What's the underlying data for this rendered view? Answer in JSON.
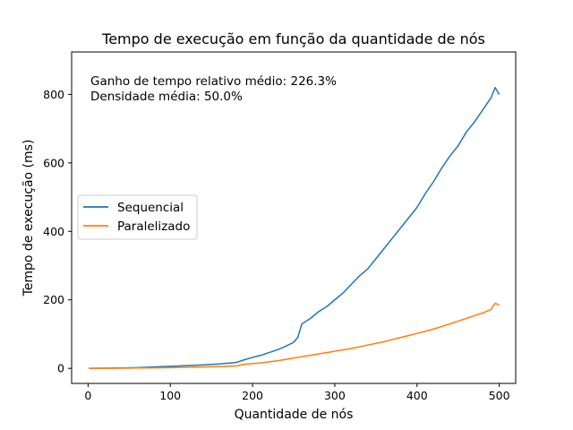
{
  "chart_data": {
    "type": "line",
    "title": "Tempo de execução em função da quantidade de nós",
    "xlabel": "Quantidade de nós",
    "ylabel": "Tempo de execução (ms)",
    "xlim": [
      -20,
      520
    ],
    "ylim": [
      -44,
      924
    ],
    "xticks": [
      0,
      100,
      200,
      300,
      400,
      500
    ],
    "yticks": [
      0,
      200,
      400,
      600,
      800
    ],
    "grid": false,
    "legend_position": "center-left",
    "annotations": [
      "Ganho de tempo relativo médio: 226.3%",
      "Densidade média: 50.0%"
    ],
    "series": [
      {
        "name": "Sequencial",
        "color": "#1f77b4",
        "x": [
          1,
          20,
          40,
          60,
          80,
          100,
          120,
          140,
          160,
          180,
          190,
          200,
          210,
          220,
          230,
          240,
          250,
          255,
          260,
          270,
          280,
          290,
          300,
          310,
          320,
          330,
          340,
          350,
          360,
          370,
          380,
          390,
          400,
          410,
          420,
          430,
          440,
          450,
          460,
          470,
          480,
          490,
          495,
          500
        ],
        "y": [
          0,
          0.5,
          1,
          2,
          4,
          6,
          8,
          10,
          13,
          17,
          25,
          32,
          38,
          46,
          54,
          64,
          76,
          90,
          130,
          145,
          165,
          180,
          200,
          220,
          245,
          270,
          290,
          320,
          350,
          380,
          410,
          440,
          470,
          510,
          545,
          585,
          620,
          650,
          690,
          720,
          755,
          790,
          820,
          800
        ]
      },
      {
        "name": "Paralelizado",
        "color": "#ff7f0e",
        "x": [
          1,
          20,
          40,
          60,
          80,
          100,
          120,
          140,
          160,
          180,
          190,
          200,
          210,
          220,
          230,
          240,
          250,
          260,
          270,
          280,
          290,
          300,
          310,
          320,
          330,
          340,
          350,
          360,
          370,
          380,
          390,
          400,
          410,
          420,
          430,
          440,
          450,
          460,
          470,
          480,
          490,
          495,
          500
        ],
        "y": [
          0,
          0.2,
          0.5,
          1,
          1.5,
          2,
          3,
          4,
          5,
          7,
          12,
          14,
          16,
          19,
          22,
          26,
          30,
          34,
          38,
          42,
          46,
          50,
          54,
          58,
          63,
          68,
          73,
          78,
          84,
          90,
          96,
          102,
          108,
          115,
          122,
          130,
          138,
          146,
          154,
          162,
          172,
          190,
          185
        ]
      }
    ]
  }
}
